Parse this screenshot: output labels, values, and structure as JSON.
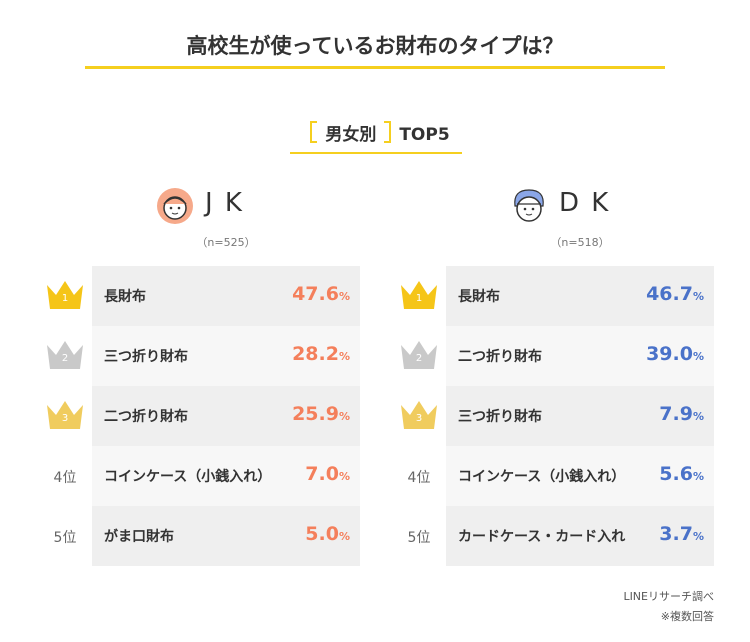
{
  "title": "高校生が使っているお財布のタイプは？",
  "subtitle": {
    "label": "男女別",
    "suffix": "TOP5"
  },
  "panels": [
    {
      "name": "J K",
      "n": "（n=525）",
      "unit": "%",
      "rows": [
        {
          "rank": "1",
          "item": "長財布",
          "value": "47.6"
        },
        {
          "rank": "2",
          "item": "三つ折り財布",
          "value": "28.2"
        },
        {
          "rank": "3",
          "item": "二つ折り財布",
          "value": "25.9"
        },
        {
          "rank": "4位",
          "item": "コインケース（小銭入れ）",
          "value": "7.0"
        },
        {
          "rank": "5位",
          "item": "がま口財布",
          "value": "5.0"
        }
      ]
    },
    {
      "name": "D K",
      "n": "（n=518）",
      "unit": "%",
      "rows": [
        {
          "rank": "1",
          "item": "長財布",
          "value": "46.7"
        },
        {
          "rank": "2",
          "item": "二つ折り財布",
          "value": "39.0"
        },
        {
          "rank": "3",
          "item": "三つ折り財布",
          "value": "7.9"
        },
        {
          "rank": "4位",
          "item": "コインケース（小銭入れ）",
          "value": "5.6"
        },
        {
          "rank": "5位",
          "item": "カードケース・カード入れ",
          "value": "3.7"
        }
      ]
    }
  ],
  "footer": {
    "source": "LINEリサーチ調べ",
    "note": "※複数回答"
  }
}
